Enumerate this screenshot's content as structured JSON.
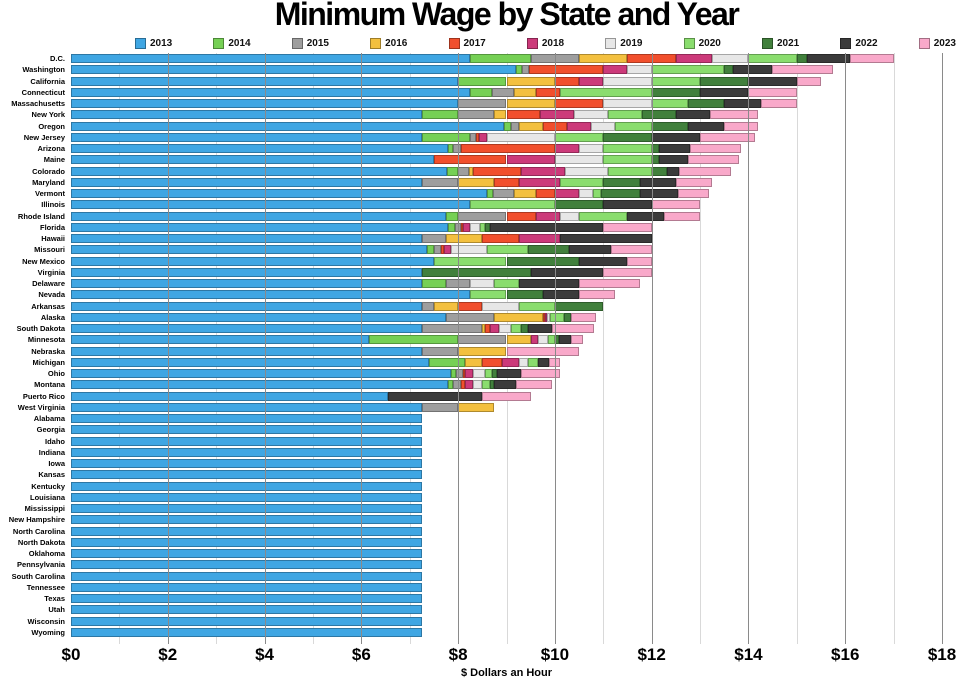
{
  "title": "Minimum Wage by State and Year",
  "chart_data": {
    "type": "bar",
    "orientation": "horizontal",
    "title": "Minimum Wage by State and Year",
    "xlabel": "$ Dollars an Hour",
    "xlim": [
      0,
      18
    ],
    "grid": "on",
    "legend_position": "top",
    "x_axis": {
      "tick_values": [
        0,
        2,
        4,
        6,
        8,
        10,
        12,
        14,
        16,
        18
      ],
      "tick_labels": [
        "$0",
        "$2",
        "$4",
        "$6",
        "$8",
        "$10",
        "$12",
        "$14",
        "$16",
        "$18"
      ]
    },
    "years": [
      "2013",
      "2014",
      "2015",
      "2016",
      "2017",
      "2018",
      "2019",
      "2020",
      "2021",
      "2022",
      "2023"
    ],
    "year_colors": {
      "2013": "#3FA6E3",
      "2014": "#76D055",
      "2015": "#9E9E9E",
      "2016": "#F3C03F",
      "2017": "#F14F2D",
      "2018": "#CC3A7A",
      "2019": "#E7E7E7",
      "2020": "#8ADD6E",
      "2021": "#41803C",
      "2022": "#3B3B3B",
      "2023": "#F9A9CA"
    },
    "states": [
      {
        "name": "D.C.",
        "values": [
          8.25,
          9.5,
          10.5,
          11.5,
          12.5,
          13.25,
          14.0,
          15.0,
          15.2,
          16.1,
          17.0
        ]
      },
      {
        "name": "Washington",
        "values": [
          9.19,
          9.32,
          9.47,
          9.47,
          11.0,
          11.5,
          12.0,
          13.5,
          13.69,
          14.49,
          15.74
        ]
      },
      {
        "name": "California",
        "values": [
          8.0,
          9.0,
          9.0,
          10.0,
          10.5,
          11.0,
          12.0,
          13.0,
          14.0,
          15.0,
          15.5
        ]
      },
      {
        "name": "Connecticut",
        "values": [
          8.25,
          8.7,
          9.15,
          9.6,
          10.1,
          10.1,
          10.1,
          12.0,
          13.0,
          14.0,
          15.0
        ]
      },
      {
        "name": "Massachusetts",
        "values": [
          8.0,
          8.0,
          9.0,
          10.0,
          11.0,
          11.0,
          12.0,
          12.75,
          13.5,
          14.25,
          15.0
        ]
      },
      {
        "name": "New York",
        "values": [
          7.25,
          8.0,
          8.75,
          9.0,
          9.7,
          10.4,
          11.1,
          11.8,
          12.5,
          13.2,
          14.2
        ]
      },
      {
        "name": "Oregon",
        "values": [
          8.95,
          9.1,
          9.25,
          9.75,
          10.25,
          10.75,
          11.25,
          12.0,
          12.75,
          13.5,
          14.2
        ]
      },
      {
        "name": "New Jersey",
        "values": [
          7.25,
          8.25,
          8.38,
          8.38,
          8.44,
          8.6,
          10.0,
          11.0,
          12.0,
          13.0,
          14.13
        ]
      },
      {
        "name": "Arizona",
        "values": [
          7.8,
          7.9,
          8.05,
          8.05,
          10.0,
          10.5,
          11.0,
          12.0,
          12.15,
          12.8,
          13.85
        ]
      },
      {
        "name": "Maine",
        "values": [
          7.5,
          7.5,
          7.5,
          7.5,
          9.0,
          10.0,
          11.0,
          12.0,
          12.15,
          12.75,
          13.8
        ]
      },
      {
        "name": "Colorado",
        "values": [
          7.78,
          8.0,
          8.23,
          8.31,
          9.3,
          10.2,
          11.1,
          12.0,
          12.32,
          12.56,
          13.65
        ]
      },
      {
        "name": "Maryland",
        "values": [
          7.25,
          7.25,
          8.0,
          8.75,
          9.25,
          10.1,
          10.1,
          11.0,
          11.75,
          12.5,
          13.25
        ]
      },
      {
        "name": "Vermont",
        "values": [
          8.6,
          8.73,
          9.15,
          9.6,
          10.0,
          10.5,
          10.78,
          10.96,
          11.75,
          12.55,
          13.18
        ]
      },
      {
        "name": "Illinois",
        "values": [
          8.25,
          8.25,
          8.25,
          8.25,
          8.25,
          8.25,
          8.25,
          10.0,
          11.0,
          12.0,
          13.0
        ]
      },
      {
        "name": "Rhode Island",
        "values": [
          7.75,
          8.0,
          9.0,
          9.0,
          9.6,
          10.1,
          10.5,
          11.5,
          11.5,
          12.25,
          13.0
        ]
      },
      {
        "name": "Florida",
        "values": [
          7.79,
          7.93,
          8.05,
          8.05,
          8.1,
          8.25,
          8.46,
          8.56,
          8.65,
          11.0,
          12.0
        ]
      },
      {
        "name": "Hawaii",
        "values": [
          7.25,
          7.25,
          7.75,
          8.5,
          9.25,
          10.1,
          10.1,
          10.1,
          10.1,
          12.0,
          12.0
        ]
      },
      {
        "name": "Missouri",
        "values": [
          7.35,
          7.5,
          7.65,
          7.65,
          7.7,
          7.85,
          8.6,
          9.45,
          10.3,
          11.15,
          12.0
        ]
      },
      {
        "name": "New Mexico",
        "values": [
          7.5,
          7.5,
          7.5,
          7.5,
          7.5,
          7.5,
          7.5,
          9.0,
          10.5,
          11.5,
          12.0
        ]
      },
      {
        "name": "Virginia",
        "values": [
          7.25,
          7.25,
          7.25,
          7.25,
          7.25,
          7.25,
          7.25,
          7.25,
          9.5,
          11.0,
          12.0
        ]
      },
      {
        "name": "Delaware",
        "values": [
          7.25,
          7.75,
          8.25,
          8.25,
          8.25,
          8.25,
          8.75,
          9.25,
          9.25,
          10.5,
          11.75
        ]
      },
      {
        "name": "Nevada",
        "values": [
          8.25,
          8.25,
          8.25,
          8.25,
          8.25,
          8.25,
          8.25,
          9.0,
          9.75,
          10.5,
          11.25
        ]
      },
      {
        "name": "Arkansas",
        "values": [
          7.25,
          7.25,
          7.5,
          8.0,
          8.5,
          8.5,
          9.25,
          10.0,
          11.0,
          11.0,
          11.0
        ]
      },
      {
        "name": "Alaska",
        "values": [
          7.75,
          7.75,
          8.75,
          9.75,
          9.8,
          9.84,
          9.89,
          10.19,
          10.34,
          10.34,
          10.85
        ]
      },
      {
        "name": "South Dakota",
        "values": [
          7.25,
          7.25,
          8.5,
          8.55,
          8.65,
          8.85,
          9.1,
          9.3,
          9.45,
          9.95,
          10.8
        ]
      },
      {
        "name": "Minnesota",
        "values": [
          6.15,
          8.0,
          9.0,
          9.5,
          9.5,
          9.65,
          9.86,
          10.0,
          10.08,
          10.33,
          10.59
        ]
      },
      {
        "name": "Nebraska",
        "values": [
          7.25,
          7.25,
          8.0,
          9.0,
          9.0,
          9.0,
          9.0,
          9.0,
          9.0,
          9.0,
          10.5
        ]
      },
      {
        "name": "Michigan",
        "values": [
          7.4,
          8.15,
          8.15,
          8.5,
          8.9,
          9.25,
          9.45,
          9.65,
          9.65,
          9.87,
          10.1
        ]
      },
      {
        "name": "Ohio",
        "values": [
          7.85,
          7.95,
          8.1,
          8.1,
          8.15,
          8.3,
          8.55,
          8.7,
          8.8,
          9.3,
          10.1
        ]
      },
      {
        "name": "Montana",
        "values": [
          7.8,
          7.9,
          8.05,
          8.05,
          8.15,
          8.3,
          8.5,
          8.65,
          8.75,
          9.2,
          9.95
        ]
      },
      {
        "name": "Puerto Rico",
        "values": [
          6.55,
          6.55,
          6.55,
          6.55,
          6.55,
          6.55,
          6.55,
          6.55,
          6.55,
          8.5,
          9.5
        ]
      },
      {
        "name": "West Virginia",
        "values": [
          7.25,
          7.25,
          8.0,
          8.75,
          8.75,
          8.75,
          8.75,
          8.75,
          8.75,
          8.75,
          8.75
        ]
      },
      {
        "name": "Alabama",
        "values": [
          7.25,
          7.25,
          7.25,
          7.25,
          7.25,
          7.25,
          7.25,
          7.25,
          7.25,
          7.25,
          7.25
        ]
      },
      {
        "name": "Georgia",
        "values": [
          7.25,
          7.25,
          7.25,
          7.25,
          7.25,
          7.25,
          7.25,
          7.25,
          7.25,
          7.25,
          7.25
        ]
      },
      {
        "name": "Idaho",
        "values": [
          7.25,
          7.25,
          7.25,
          7.25,
          7.25,
          7.25,
          7.25,
          7.25,
          7.25,
          7.25,
          7.25
        ]
      },
      {
        "name": "Indiana",
        "values": [
          7.25,
          7.25,
          7.25,
          7.25,
          7.25,
          7.25,
          7.25,
          7.25,
          7.25,
          7.25,
          7.25
        ]
      },
      {
        "name": "Iowa",
        "values": [
          7.25,
          7.25,
          7.25,
          7.25,
          7.25,
          7.25,
          7.25,
          7.25,
          7.25,
          7.25,
          7.25
        ]
      },
      {
        "name": "Kansas",
        "values": [
          7.25,
          7.25,
          7.25,
          7.25,
          7.25,
          7.25,
          7.25,
          7.25,
          7.25,
          7.25,
          7.25
        ]
      },
      {
        "name": "Kentucky",
        "values": [
          7.25,
          7.25,
          7.25,
          7.25,
          7.25,
          7.25,
          7.25,
          7.25,
          7.25,
          7.25,
          7.25
        ]
      },
      {
        "name": "Louisiana",
        "values": [
          7.25,
          7.25,
          7.25,
          7.25,
          7.25,
          7.25,
          7.25,
          7.25,
          7.25,
          7.25,
          7.25
        ]
      },
      {
        "name": "Mississippi",
        "values": [
          7.25,
          7.25,
          7.25,
          7.25,
          7.25,
          7.25,
          7.25,
          7.25,
          7.25,
          7.25,
          7.25
        ]
      },
      {
        "name": "New Hampshire",
        "values": [
          7.25,
          7.25,
          7.25,
          7.25,
          7.25,
          7.25,
          7.25,
          7.25,
          7.25,
          7.25,
          7.25
        ]
      },
      {
        "name": "North Carolina",
        "values": [
          7.25,
          7.25,
          7.25,
          7.25,
          7.25,
          7.25,
          7.25,
          7.25,
          7.25,
          7.25,
          7.25
        ]
      },
      {
        "name": "North Dakota",
        "values": [
          7.25,
          7.25,
          7.25,
          7.25,
          7.25,
          7.25,
          7.25,
          7.25,
          7.25,
          7.25,
          7.25
        ]
      },
      {
        "name": "Oklahoma",
        "values": [
          7.25,
          7.25,
          7.25,
          7.25,
          7.25,
          7.25,
          7.25,
          7.25,
          7.25,
          7.25,
          7.25
        ]
      },
      {
        "name": "Pennsylvania",
        "values": [
          7.25,
          7.25,
          7.25,
          7.25,
          7.25,
          7.25,
          7.25,
          7.25,
          7.25,
          7.25,
          7.25
        ]
      },
      {
        "name": "South Carolina",
        "values": [
          7.25,
          7.25,
          7.25,
          7.25,
          7.25,
          7.25,
          7.25,
          7.25,
          7.25,
          7.25,
          7.25
        ]
      },
      {
        "name": "Tennessee",
        "values": [
          7.25,
          7.25,
          7.25,
          7.25,
          7.25,
          7.25,
          7.25,
          7.25,
          7.25,
          7.25,
          7.25
        ]
      },
      {
        "name": "Texas",
        "values": [
          7.25,
          7.25,
          7.25,
          7.25,
          7.25,
          7.25,
          7.25,
          7.25,
          7.25,
          7.25,
          7.25
        ]
      },
      {
        "name": "Utah",
        "values": [
          7.25,
          7.25,
          7.25,
          7.25,
          7.25,
          7.25,
          7.25,
          7.25,
          7.25,
          7.25,
          7.25
        ]
      },
      {
        "name": "Wisconsin",
        "values": [
          7.25,
          7.25,
          7.25,
          7.25,
          7.25,
          7.25,
          7.25,
          7.25,
          7.25,
          7.25,
          7.25
        ]
      },
      {
        "name": "Wyoming",
        "values": [
          7.25,
          7.25,
          7.25,
          7.25,
          7.25,
          7.25,
          7.25,
          7.25,
          7.25,
          7.25,
          7.25
        ]
      }
    ]
  }
}
